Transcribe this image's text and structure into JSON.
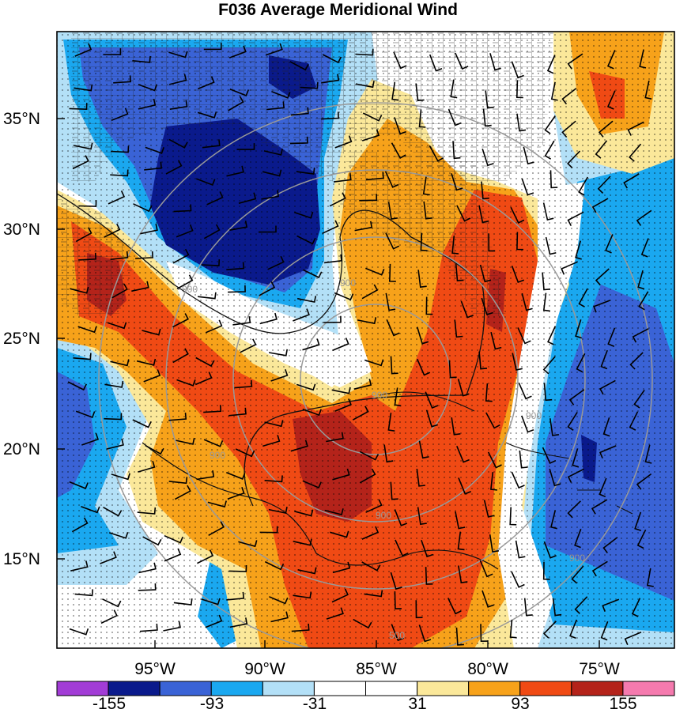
{
  "title": "F036 Average Meridional Wind",
  "latitude_labels": [
    "35°N",
    "30°N",
    "25°N",
    "20°N",
    "15°N"
  ],
  "longitude_labels": [
    "95°W",
    "90°W",
    "85°W",
    "80°W",
    "75°W"
  ],
  "colorbar": {
    "colors": [
      "#a23cd6",
      "#0a1a8c",
      "#3a63d6",
      "#1aa8f0",
      "#b3e0f7",
      "#ffffff",
      "#ffffff",
      "#fbe89a",
      "#f7a21a",
      "#f04a14",
      "#b4231a",
      "#f57aae"
    ],
    "labels": [
      "-155",
      "-93",
      "-31",
      "31",
      "93",
      "155"
    ]
  },
  "range_ring_labels": [
    "900",
    "900",
    "900",
    "900",
    "900",
    "900",
    "900",
    "500"
  ],
  "palette": {
    "deep_blue": "#0a1a8c",
    "blue": "#3a63d6",
    "light_blue": "#1aa8f0",
    "pale_blue": "#b3e0f7",
    "yellow": "#fbe89a",
    "orange": "#f7a21a",
    "red_orange": "#f04a14",
    "dark_red": "#b4231a"
  }
}
